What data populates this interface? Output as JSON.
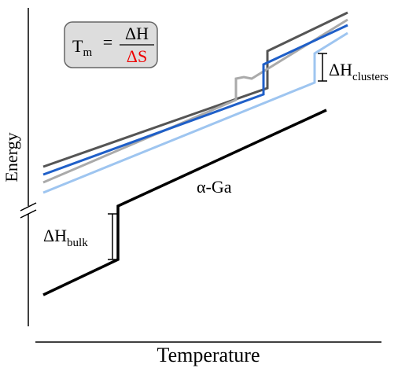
{
  "formula": {
    "lhs": "T",
    "lhs_sub": "m",
    "equals": "=",
    "numerator": "ΔH",
    "denominator": "ΔS"
  },
  "annotations": {
    "clusters": {
      "symbol": "ΔH",
      "sub": "clusters"
    },
    "bulk": {
      "symbol": "ΔH",
      "sub": "bulk"
    },
    "phase": "α-Ga"
  },
  "axes": {
    "y_label": "Energy",
    "x_label": "Temperature"
  }
}
